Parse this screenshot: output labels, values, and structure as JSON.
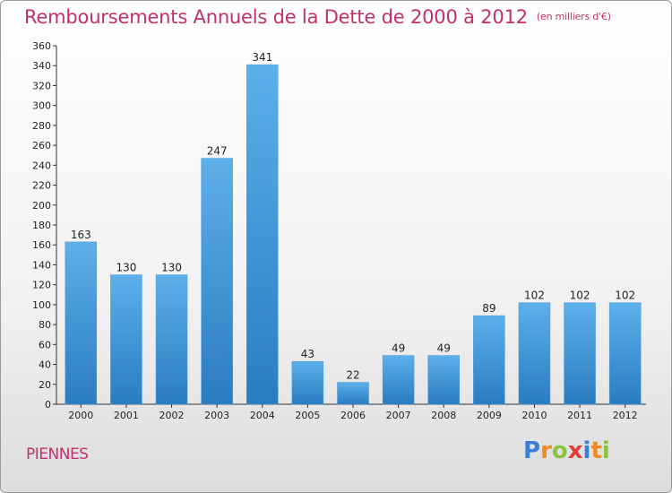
{
  "header": {
    "title": "Remboursements Annuels de la Dette de 2000 à 2012",
    "subtitle": "(en milliers d'€)"
  },
  "footer": {
    "town": "PIENNES",
    "logo": [
      "P",
      "r",
      "o",
      "x",
      "i",
      "t",
      "i"
    ]
  },
  "colors": {
    "title": "#c0306a",
    "bar_top": "#5db0ea",
    "bar_bottom": "#2a7cc0",
    "logo": [
      "#3b7fd4",
      "#f08a24",
      "#8bc53f",
      "#e83a3a",
      "#3b7fd4",
      "#f08a24",
      "#8bc53f"
    ]
  },
  "chart_data": {
    "type": "bar",
    "title": "Remboursements Annuels de la Dette de 2000 à 2012",
    "subtitle": "(en milliers d'€)",
    "categories": [
      "2000",
      "2001",
      "2002",
      "2003",
      "2004",
      "2005",
      "2006",
      "2007",
      "2008",
      "2009",
      "2010",
      "2011",
      "2012"
    ],
    "values": [
      163,
      130,
      130,
      247,
      341,
      43,
      22,
      49,
      49,
      89,
      102,
      102,
      102
    ],
    "ylim": [
      0,
      360
    ],
    "yticks": [
      0,
      20,
      40,
      60,
      80,
      100,
      120,
      140,
      160,
      180,
      200,
      220,
      240,
      260,
      280,
      300,
      320,
      340,
      360
    ],
    "grid": false,
    "legend": "none",
    "xlabel": "",
    "ylabel": ""
  }
}
